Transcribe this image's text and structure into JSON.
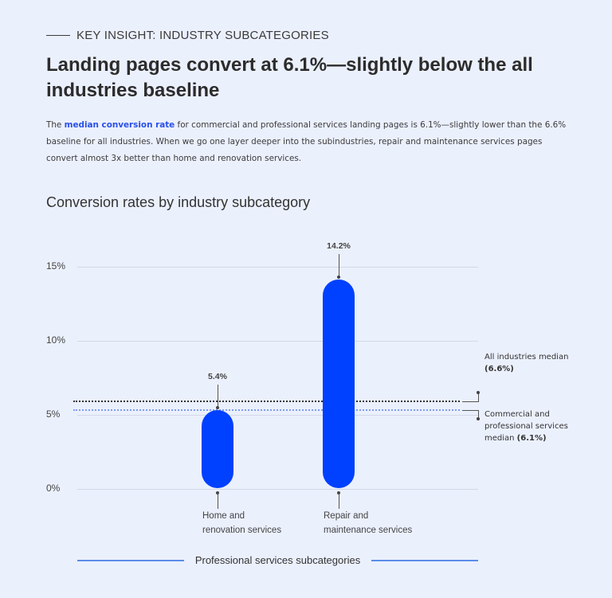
{
  "eyebrow": "KEY INSIGHT: INDUSTRY SUBCATEGORIES",
  "headline": "Landing pages convert at 6.1%—slightly below the all industries baseline",
  "body": {
    "prefix": "The ",
    "highlight": "median conversion rate",
    "suffix": " for commercial and professional services landing pages is 6.1%—slightly lower than the 6.6% baseline for all industries. When we go one layer deeper into the subindustries, repair and maintenance services pages convert almost 3x better than home and renovation services."
  },
  "colors": {
    "background": "#ebf0fd",
    "bar": "#0040ff",
    "highlight_text": "#2a50e8",
    "all_median_line": "#333333",
    "commercial_median_line": "#7d9cf2",
    "footer_rule": "#5a8ee8"
  },
  "chart_data": {
    "type": "bar",
    "title": "Conversion rates by industry subcategory",
    "xlabel": "Professional services subcategories",
    "ylabel": "",
    "ylim": [
      0,
      15
    ],
    "yticks": [
      "0%",
      "5%",
      "10%",
      "15%"
    ],
    "grid": true,
    "categories": [
      "Home and renovation services",
      "Repair and maintenance services"
    ],
    "category_lines": [
      [
        "Home and",
        "renovation services"
      ],
      [
        "Repair and",
        "maintenance services"
      ]
    ],
    "values": [
      5.4,
      14.2
    ],
    "value_labels": [
      "5.4%",
      "14.2%"
    ],
    "reference_lines": [
      {
        "name": "All industries median",
        "value": 6.6,
        "label": "(6.6%)",
        "style": "dotted",
        "color": "#333333"
      },
      {
        "name": "Commercial and professional services median",
        "value": 6.1,
        "label": "(6.1%)",
        "style": "dotted",
        "color": "#7d9cf2"
      }
    ]
  },
  "annotations": {
    "all_median_text": "All industries median",
    "all_median_value": "(6.6%)",
    "com_median_text": "Commercial and professional services median",
    "com_median_value": "(6.1%)"
  }
}
